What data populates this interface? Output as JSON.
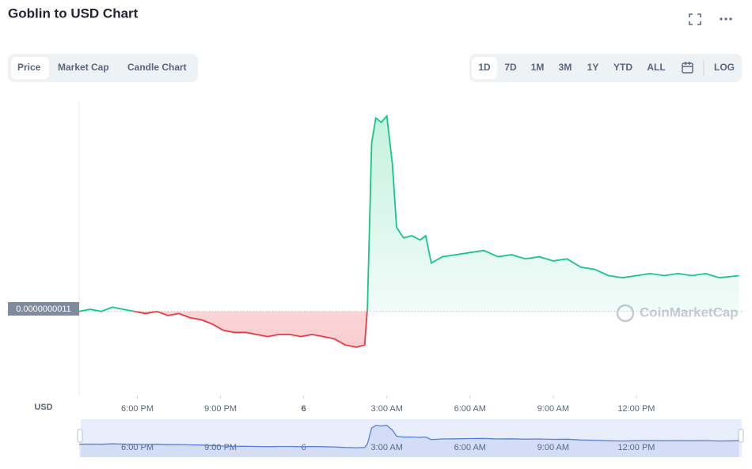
{
  "header": {
    "title": "Goblin to USD Chart",
    "tabs": [
      "Price",
      "Market Cap",
      "Candle Chart"
    ],
    "ranges": [
      "1D",
      "7D",
      "1M",
      "3M",
      "1Y",
      "YTD",
      "ALL"
    ],
    "log": "LOG"
  },
  "chart_data": {
    "type": "line",
    "y_label": "USD",
    "watermark": "CoinMarketCap",
    "up_color": "#16c784",
    "down_color": "#ea3943",
    "nav_color": "#5b7fd6",
    "reference": {
      "value": 1.1e-09,
      "label": "0.0000000011"
    },
    "xlim": [
      15.9,
      39.8
    ],
    "ylim": [
      7e-10,
      2.1e-09
    ],
    "xticks": [
      {
        "value": 18,
        "label": "6:00 PM"
      },
      {
        "value": 21,
        "label": "9:00 PM"
      },
      {
        "value": 24,
        "label": "6"
      },
      {
        "value": 27,
        "label": "3:00 AM"
      },
      {
        "value": 30,
        "label": "6:00 AM"
      },
      {
        "value": 33,
        "label": "9:00 AM"
      },
      {
        "value": 36,
        "label": "12:00 PM"
      }
    ],
    "x": [
      15.9,
      16.3,
      16.7,
      17.1,
      17.5,
      17.9,
      18.3,
      18.7,
      19.1,
      19.5,
      19.9,
      20.3,
      20.7,
      21.1,
      21.5,
      21.9,
      22.3,
      22.7,
      23.1,
      23.5,
      23.9,
      24.3,
      24.7,
      25.1,
      25.5,
      25.9,
      26.2,
      26.3,
      26.45,
      26.6,
      26.8,
      27.0,
      27.2,
      27.35,
      27.6,
      27.9,
      28.2,
      28.4,
      28.6,
      29.0,
      29.5,
      30.0,
      30.5,
      31.0,
      31.5,
      32.0,
      32.5,
      33.0,
      33.5,
      34.0,
      34.5,
      35.0,
      35.5,
      36.0,
      36.5,
      37.0,
      37.5,
      38.0,
      38.5,
      39.0,
      39.7
    ],
    "values": [
      1.1e-09,
      1.11e-09,
      1.1e-09,
      1.12e-09,
      1.11e-09,
      1.1e-09,
      1.09e-09,
      1.1e-09,
      1.08e-09,
      1.09e-09,
      1.07e-09,
      1.06e-09,
      1.04e-09,
      1.01e-09,
      1e-09,
      1e-09,
      9.9e-10,
      9.8e-10,
      9.9e-10,
      9.9e-10,
      9.8e-10,
      9.9e-10,
      9.8e-10,
      9.7e-10,
      9.4e-10,
      9.3e-10,
      9.4e-10,
      1.12e-09,
      1.9e-09,
      2.02e-09,
      2e-09,
      2.03e-09,
      1.8e-09,
      1.5e-09,
      1.45e-09,
      1.46e-09,
      1.44e-09,
      1.46e-09,
      1.33e-09,
      1.36e-09,
      1.37e-09,
      1.38e-09,
      1.39e-09,
      1.36e-09,
      1.37e-09,
      1.35e-09,
      1.36e-09,
      1.34e-09,
      1.35e-09,
      1.31e-09,
      1.3e-09,
      1.27e-09,
      1.26e-09,
      1.27e-09,
      1.28e-09,
      1.27e-09,
      1.28e-09,
      1.27e-09,
      1.28e-09,
      1.26e-09,
      1.27e-09
    ]
  }
}
